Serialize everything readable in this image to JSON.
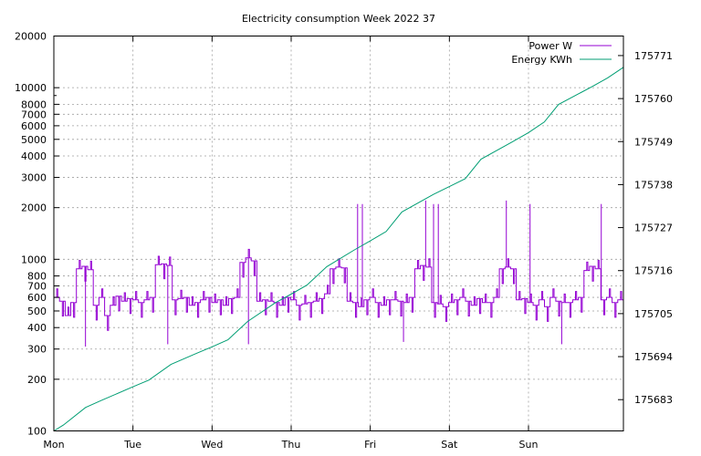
{
  "chart_data": {
    "type": "line",
    "title": "Electricity consumption Week 2022 37",
    "x_categories": [
      "Mon",
      "Tue",
      "Wed",
      "Thu",
      "Fri",
      "Sat",
      "Sun"
    ],
    "x_range_days": [
      0,
      7.2
    ],
    "y_left": {
      "scale": "log",
      "range": [
        100,
        20000
      ],
      "ticks": [
        100,
        200,
        300,
        400,
        500,
        600,
        700,
        800,
        1000,
        2000,
        3000,
        4000,
        5000,
        6000,
        7000,
        8000,
        10000,
        20000
      ]
    },
    "y_right": {
      "scale": "linear",
      "range": [
        175675,
        175776
      ],
      "ticks": [
        175683,
        175694,
        175705,
        175716,
        175727,
        175738,
        175749,
        175760,
        175771
      ]
    },
    "grid": true,
    "legend_position": "top-right",
    "series": [
      {
        "name": "Power W",
        "axis": "left",
        "color": "#9400d3",
        "baseline": [
          600,
          570,
          470,
          560,
          880,
          910,
          870,
          540,
          600,
          470,
          540,
          610,
          570,
          590,
          580,
          560,
          580,
          600,
          930,
          940,
          920,
          580,
          590,
          600,
          540,
          560,
          580,
          600,
          560,
          580,
          540,
          590,
          600,
          960,
          1020,
          980,
          570,
          580,
          570,
          560,
          540,
          600,
          580,
          540,
          550,
          560,
          570,
          590,
          630,
          880,
          900,
          890,
          570,
          560,
          530,
          580,
          600,
          560,
          540,
          580,
          580,
          570,
          560,
          600,
          880,
          920,
          900,
          560,
          550,
          530,
          560,
          580,
          600,
          570,
          540,
          590,
          560,
          560,
          600,
          880,
          900,
          880,
          580,
          590,
          560,
          540,
          580,
          530,
          600,
          570,
          560,
          560,
          580,
          600,
          860,
          910,
          880,
          580,
          600,
          560,
          580
        ],
        "spikes": [
          {
            "day": 3.84,
            "value": 2100
          },
          {
            "day": 3.9,
            "value": 2100
          },
          {
            "day": 4.7,
            "value": 2200
          },
          {
            "day": 4.8,
            "value": 2100
          },
          {
            "day": 4.86,
            "value": 2100
          },
          {
            "day": 5.72,
            "value": 2200
          },
          {
            "day": 6.02,
            "value": 2100
          },
          {
            "day": 6.92,
            "value": 2100
          },
          {
            "day": 0.4,
            "value": 310
          },
          {
            "day": 1.44,
            "value": 320
          },
          {
            "day": 2.46,
            "value": 320
          },
          {
            "day": 4.42,
            "value": 330
          },
          {
            "day": 6.42,
            "value": 320
          }
        ]
      },
      {
        "name": "Energy KWh",
        "axis": "right",
        "color": "#009e73",
        "points": [
          [
            0,
            175675.0
          ],
          [
            0.12,
            175676.5
          ],
          [
            0.4,
            175681.0
          ],
          [
            0.6,
            175682.8
          ],
          [
            1.0,
            175686.3
          ],
          [
            1.2,
            175688.0
          ],
          [
            1.48,
            175692.0
          ],
          [
            1.8,
            175694.8
          ],
          [
            2.0,
            175696.5
          ],
          [
            2.2,
            175698.3
          ],
          [
            2.45,
            175703.0
          ],
          [
            2.8,
            175707.8
          ],
          [
            3.0,
            175710.0
          ],
          [
            3.2,
            175712.3
          ],
          [
            3.45,
            175717.0
          ],
          [
            3.8,
            175721.3
          ],
          [
            4.0,
            175723.6
          ],
          [
            4.2,
            175726.0
          ],
          [
            4.4,
            175731.0
          ],
          [
            4.8,
            175735.5
          ],
          [
            5.0,
            175737.5
          ],
          [
            5.2,
            175739.5
          ],
          [
            5.4,
            175744.5
          ],
          [
            5.8,
            175749.0
          ],
          [
            6.0,
            175751.3
          ],
          [
            6.2,
            175754.0
          ],
          [
            6.38,
            175758.5
          ],
          [
            6.8,
            175763.0
          ],
          [
            7.0,
            175765.3
          ],
          [
            7.2,
            175768.0
          ]
        ]
      }
    ]
  }
}
